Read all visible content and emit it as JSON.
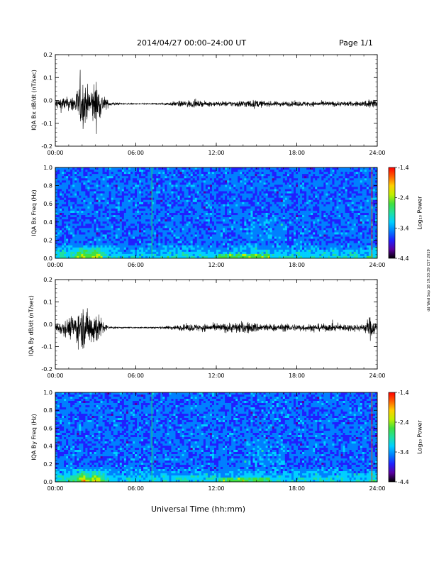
{
  "header": {
    "title": "2014/04/27  00:00–24:00 UT",
    "page": "Page 1/1"
  },
  "footer": {
    "xlabel": "Universal Time (hh:mm)",
    "side_stamp": "dd Wed Sep 18 19:33:39 CST 2019"
  },
  "colors": {
    "colorbar": [
      "#000000",
      "#5a00a0",
      "#2020ff",
      "#0080ff",
      "#00d0ff",
      "#20e0a0",
      "#40e040",
      "#c0f000",
      "#ffd000",
      "#ff6000",
      "#ff0000"
    ],
    "spectrogram_bg": "#1030d0",
    "trace": "#000000"
  },
  "chart_data": [
    {
      "type": "line",
      "id": "bx_ts",
      "ylabel": "IQA Bx dB/dt (nT/sec)",
      "ylim": [
        -0.2,
        0.2
      ],
      "yticks": [
        "0.2",
        "0.1",
        "0.0",
        "-0.1",
        "-0.2"
      ],
      "xlim": [
        0,
        24
      ],
      "xticks": [
        "00:00",
        "06:00",
        "12:00",
        "18:00",
        "24:00"
      ],
      "envelope": {
        "t": [
          0,
          0.5,
          1,
          1.5,
          2,
          2.5,
          3,
          3.5,
          4,
          5,
          6,
          7,
          8,
          9,
          10,
          11,
          12,
          13,
          14,
          15,
          16,
          17,
          18,
          19,
          20,
          21,
          22,
          23,
          23.5,
          24
        ],
        "amp": [
          0.04,
          0.06,
          0.05,
          0.09,
          0.2,
          0.12,
          0.19,
          0.08,
          0.02,
          0.005,
          0.005,
          0.006,
          0.008,
          0.02,
          0.03,
          0.02,
          0.02,
          0.02,
          0.03,
          0.03,
          0.02,
          0.02,
          0.02,
          0.02,
          0.02,
          0.02,
          0.02,
          0.02,
          0.06,
          0.02
        ]
      }
    },
    {
      "type": "heatmap",
      "id": "bx_spec",
      "ylabel": "IQA Bx Freq (Hz)",
      "ylim": [
        0.0,
        1.0
      ],
      "yticks": [
        "1.0",
        "0.8",
        "0.6",
        "0.4",
        "0.2",
        "0.0"
      ],
      "xlim": [
        0,
        24
      ],
      "xticks": [
        "00:00",
        "06:00",
        "12:00",
        "18:00",
        "24:00"
      ],
      "colorbar": {
        "label": "Log₁₀ Power",
        "ticks": [
          "-1.4",
          "-2.4",
          "-3.4",
          "-4.4"
        ],
        "range": [
          -4.4,
          -1.4
        ]
      }
    },
    {
      "type": "line",
      "id": "by_ts",
      "ylabel": "IQA By dB/dt (nT/sec)",
      "ylim": [
        -0.2,
        0.2
      ],
      "yticks": [
        "0.2",
        "0.1",
        "0.0",
        "-0.1",
        "-0.2"
      ],
      "xlim": [
        0,
        24
      ],
      "xticks": [
        "00:00",
        "06:00",
        "12:00",
        "18:00",
        "24:00"
      ],
      "envelope": {
        "t": [
          0,
          0.5,
          1,
          1.5,
          2,
          2.5,
          3,
          3.5,
          4,
          5,
          6,
          7,
          8,
          9,
          10,
          11,
          12,
          13,
          14,
          15,
          16,
          17,
          18,
          19,
          20,
          21,
          22,
          23,
          23.5,
          24
        ],
        "amp": [
          0.04,
          0.06,
          0.08,
          0.12,
          0.17,
          0.14,
          0.16,
          0.06,
          0.01,
          0.005,
          0.005,
          0.006,
          0.01,
          0.02,
          0.03,
          0.03,
          0.03,
          0.04,
          0.05,
          0.04,
          0.03,
          0.03,
          0.03,
          0.03,
          0.03,
          0.03,
          0.03,
          0.03,
          0.1,
          0.03
        ]
      }
    },
    {
      "type": "heatmap",
      "id": "by_spec",
      "ylabel": "IQA By Freq (Hz)",
      "ylim": [
        0.0,
        1.0
      ],
      "yticks": [
        "1.0",
        "0.8",
        "0.6",
        "0.4",
        "0.2",
        "0.0"
      ],
      "xlim": [
        0,
        24
      ],
      "xticks": [
        "00:00",
        "06:00",
        "12:00",
        "18:00",
        "24:00"
      ],
      "colorbar": {
        "label": "Log₁₀ Power",
        "ticks": [
          "-1.4",
          "-2.4",
          "-3.4",
          "-4.4"
        ],
        "range": [
          -4.4,
          -1.4
        ]
      }
    }
  ]
}
